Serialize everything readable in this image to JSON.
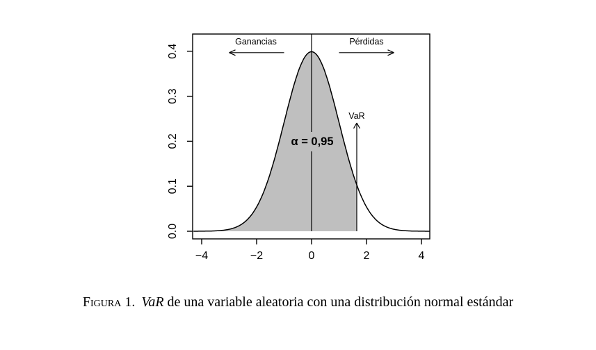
{
  "figure": {
    "caption": {
      "label": "Figura 1.",
      "title_italic": "VaR",
      "title_rest": "de una variable aleatoria con una distribución normal estándar"
    }
  },
  "chart_data": {
    "type": "area",
    "title": "",
    "xlabel": "",
    "ylabel": "",
    "description": "Standard normal probability density; shaded region covers probability 0.95 up to the VaR quantile",
    "xlim": [
      -4.3,
      4.3
    ],
    "ylim": [
      0,
      0.42
    ],
    "grid": false,
    "legend": null,
    "x_ticks": [
      -4,
      -2,
      0,
      2,
      4
    ],
    "x_tick_labels": [
      "−4",
      "−2",
      "0",
      "2",
      "4"
    ],
    "y_ticks": [
      0.0,
      0.1,
      0.2,
      0.3,
      0.4
    ],
    "y_tick_labels": [
      "0.0",
      "0.1",
      "0.2",
      "0.3",
      "0.4"
    ],
    "curve": {
      "distribution": "normal",
      "mean": 0,
      "sd": 1
    },
    "curve_points": {
      "x": [
        -4,
        -3.5,
        -3,
        -2.5,
        -2,
        -1.5,
        -1,
        -0.5,
        0,
        0.5,
        1,
        1.5,
        2,
        2.5,
        3,
        3.5,
        4
      ],
      "y": [
        0.0001,
        0.0009,
        0.0044,
        0.0175,
        0.054,
        0.1295,
        0.242,
        0.3521,
        0.3989,
        0.3521,
        0.242,
        0.1295,
        0.054,
        0.0175,
        0.0044,
        0.0009,
        0.0001
      ]
    },
    "shaded_region": {
      "from": -4.3,
      "to": 1.645,
      "probability": 0.95,
      "label": "α = 0,95",
      "fill": "#bfbfbf"
    },
    "var_marker": {
      "x": 1.645,
      "label": "VaR"
    },
    "center_line_x": 0,
    "annotations": [
      {
        "text": "Ganancias",
        "direction": "left",
        "arrow_from": -1,
        "arrow_to": -3,
        "y": 0.4
      },
      {
        "text": "Pérdidas",
        "direction": "right",
        "arrow_from": 1,
        "arrow_to": 3,
        "y": 0.4
      }
    ],
    "colors": {
      "curve": "#000000",
      "fill": "#bfbfbf",
      "axis": "#000000",
      "text": "#000000",
      "background": "#ffffff"
    }
  }
}
